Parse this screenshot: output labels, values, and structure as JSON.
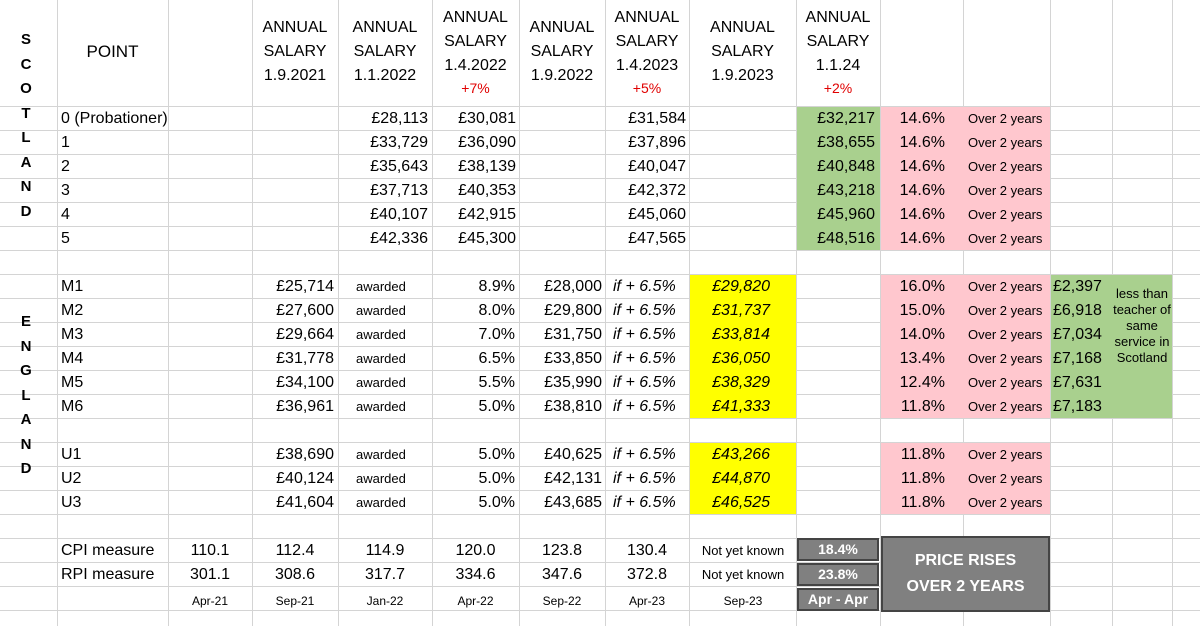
{
  "side_labels": {
    "scotland": "SCOTLAND",
    "england": "ENGLAND"
  },
  "headers": {
    "point": "POINT",
    "cols": [
      {
        "l1": "ANNUAL",
        "l2": "SALARY",
        "l3": "1.9.2021",
        "pct": ""
      },
      {
        "l1": "ANNUAL",
        "l2": "SALARY",
        "l3": "1.1.2022",
        "pct": ""
      },
      {
        "l1": "ANNUAL",
        "l2": "SALARY",
        "l3": "1.4.2022",
        "pct": "+7%"
      },
      {
        "l1": "ANNUAL",
        "l2": "SALARY",
        "l3": "1.9.2022",
        "pct": ""
      },
      {
        "l1": "ANNUAL",
        "l2": "SALARY",
        "l3": "1.4.2023",
        "pct": "+5%"
      },
      {
        "l1": "ANNUAL",
        "l2": "SALARY",
        "l3": "1.9.2023",
        "pct": ""
      },
      {
        "l1": "ANNUAL",
        "l2": "SALARY",
        "l3": "1.1.24",
        "pct": "+2%"
      }
    ]
  },
  "scotland_rows": [
    {
      "point": "0 (Probationer)",
      "s2022": "£28,113",
      "s2022b": "£30,081",
      "s2023": "£31,584",
      "s2024": "£32,217",
      "pct": "14.6%",
      "note": "Over 2 years"
    },
    {
      "point": "1",
      "s2022": "£33,729",
      "s2022b": "£36,090",
      "s2023": "£37,896",
      "s2024": "£38,655",
      "pct": "14.6%",
      "note": "Over 2 years"
    },
    {
      "point": "2",
      "s2022": "£35,643",
      "s2022b": "£38,139",
      "s2023": "£40,047",
      "s2024": "£40,848",
      "pct": "14.6%",
      "note": "Over 2 years"
    },
    {
      "point": "3",
      "s2022": "£37,713",
      "s2022b": "£40,353",
      "s2023": "£42,372",
      "s2024": "£43,218",
      "pct": "14.6%",
      "note": "Over 2 years"
    },
    {
      "point": "4",
      "s2022": "£40,107",
      "s2022b": "£42,915",
      "s2023": "£45,060",
      "s2024": "£45,960",
      "pct": "14.6%",
      "note": "Over 2 years"
    },
    {
      "point": "5",
      "s2022": "£42,336",
      "s2022b": "£45,300",
      "s2023": "£47,565",
      "s2024": "£48,516",
      "pct": "14.6%",
      "note": "Over 2 years"
    }
  ],
  "england_rows": [
    {
      "point": "M1",
      "s2021": "£25,714",
      "status": "awarded",
      "rise": "8.9%",
      "s2022": "£28,000",
      "cond": "if + 6.5%",
      "s2023": "£29,820",
      "pct": "16.0%",
      "note": "Over 2 years",
      "gap": "£2,397"
    },
    {
      "point": "M2",
      "s2021": "£27,600",
      "status": "awarded",
      "rise": "8.0%",
      "s2022": "£29,800",
      "cond": "if + 6.5%",
      "s2023": "£31,737",
      "pct": "15.0%",
      "note": "Over 2 years",
      "gap": "£6,918"
    },
    {
      "point": "M3",
      "s2021": "£29,664",
      "status": "awarded",
      "rise": "7.0%",
      "s2022": "£31,750",
      "cond": "if + 6.5%",
      "s2023": "£33,814",
      "pct": "14.0%",
      "note": "Over 2 years",
      "gap": "£7,034"
    },
    {
      "point": "M4",
      "s2021": "£31,778",
      "status": "awarded",
      "rise": "6.5%",
      "s2022": "£33,850",
      "cond": "if + 6.5%",
      "s2023": "£36,050",
      "pct": "13.4%",
      "note": "Over 2 years",
      "gap": "£7,168"
    },
    {
      "point": "M5",
      "s2021": "£34,100",
      "status": "awarded",
      "rise": "5.5%",
      "s2022": "£35,990",
      "cond": "if + 6.5%",
      "s2023": "£38,329",
      "pct": "12.4%",
      "note": "Over 2 years",
      "gap": "£7,631"
    },
    {
      "point": "M6",
      "s2021": "£36,961",
      "status": "awarded",
      "rise": "5.0%",
      "s2022": "£38,810",
      "cond": "if + 6.5%",
      "s2023": "£41,333",
      "pct": "11.8%",
      "note": "Over 2 years",
      "gap": "£7,183"
    }
  ],
  "gap_note": "less than teacher of same service in Scotland",
  "upper_rows": [
    {
      "point": "U1",
      "s2021": "£38,690",
      "status": "awarded",
      "rise": "5.0%",
      "s2022": "£40,625",
      "cond": "if + 6.5%",
      "s2023": "£43,266",
      "pct": "11.8%",
      "note": "Over 2 years"
    },
    {
      "point": "U2",
      "s2021": "£40,124",
      "status": "awarded",
      "rise": "5.0%",
      "s2022": "£42,131",
      "cond": "if + 6.5%",
      "s2023": "£44,870",
      "pct": "11.8%",
      "note": "Over 2 years"
    },
    {
      "point": "U3",
      "s2021": "£41,604",
      "status": "awarded",
      "rise": "5.0%",
      "s2022": "£43,685",
      "cond": "if + 6.5%",
      "s2023": "£46,525",
      "pct": "11.8%",
      "note": "Over 2 years"
    }
  ],
  "measures": [
    {
      "label": "CPI measure",
      "values": [
        "110.1",
        "112.4",
        "114.9",
        "120.0",
        "123.8",
        "130.4"
      ],
      "latest": "Not yet known",
      "change": "18.4%"
    },
    {
      "label": "RPI measure",
      "values": [
        "301.1",
        "308.6",
        "317.7",
        "334.6",
        "347.6",
        "372.8"
      ],
      "latest": "Not yet known",
      "change": "23.8%"
    }
  ],
  "dates": [
    "Apr-21",
    "Sep-21",
    "Jan-22",
    "Apr-22",
    "Sep-22",
    "Apr-23",
    "Sep-23"
  ],
  "period": "Apr - Apr",
  "price_rises": "PRICE RISES OVER 2 YEARS",
  "colors": {
    "green": "#a9d08e",
    "pink": "#ffc7ce",
    "yellow": "#ffff00",
    "grey": "#808080",
    "red": "#e00000"
  }
}
